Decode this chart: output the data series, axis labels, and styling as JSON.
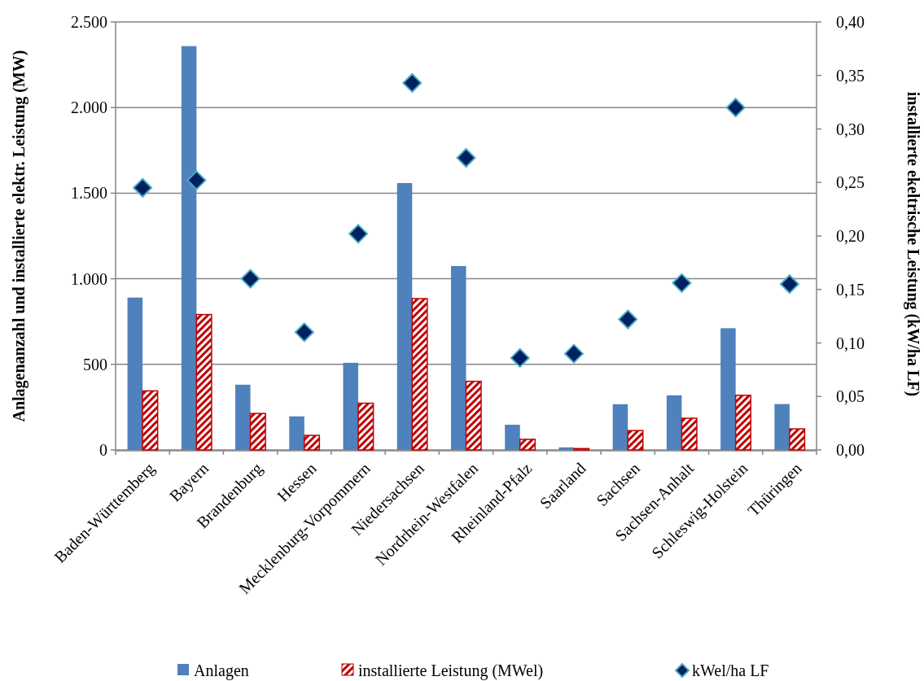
{
  "chart_data": {
    "type": "bar",
    "ylabel": "Anlagenanzahl und installierte elektr. Leistung (MW)",
    "y2label": "installierte ekeltrische Leistung (kW/ha LF)",
    "categories": [
      "Baden-Württemberg",
      "Bayern",
      "Brandenburg",
      "Hessen",
      "Mecklenburg-Vorpommern",
      "Niedersachsen",
      "Nordrhein-Westfalen",
      "Rheinland-Pfalz",
      "Saarland",
      "Sachsen",
      "Sachsen-Anhalt",
      "Schleswig-Holstein",
      "Thüringen"
    ],
    "series": [
      {
        "name": "Anlagen",
        "color": "#4f81bd",
        "values": [
          890,
          2359,
          381,
          196,
          509,
          1559,
          1074,
          147,
          15,
          267,
          319,
          711,
          268
        ]
      },
      {
        "name": "installierte Leistung (MWel)",
        "color": "#c00000",
        "values": [
          345,
          791,
          213,
          85,
          273,
          884,
          401,
          62,
          8,
          113,
          185,
          319,
          123
        ]
      },
      {
        "name": "kWel/ha LF",
        "type": "scatter",
        "axis": "y2",
        "color": "#002060",
        "marker": "diamond",
        "values": [
          0.245,
          0.252,
          0.16,
          0.11,
          0.202,
          0.343,
          0.273,
          0.086,
          0.09,
          0.122,
          0.156,
          0.32,
          0.155
        ]
      }
    ],
    "ylim": [
      0,
      2500
    ],
    "yticks": [
      0,
      500,
      {
        "value": 1000,
        "label": "1.000"
      },
      {
        "value": 1500,
        "label": "1.500"
      },
      {
        "value": 2000,
        "label": "2.000"
      },
      {
        "value": 2500,
        "label": "2.500"
      }
    ],
    "y2lim": [
      0,
      0.4
    ],
    "y2ticks": [
      {
        "value": 0,
        "label": "0,00"
      },
      {
        "value": 0.05,
        "label": "0,05"
      },
      {
        "value": 0.1,
        "label": "0,10"
      },
      {
        "value": 0.15,
        "label": "0,15"
      },
      {
        "value": 0.2,
        "label": "0,20"
      },
      {
        "value": 0.25,
        "label": "0,25"
      },
      {
        "value": 0.3,
        "label": "0,30"
      },
      {
        "value": 0.35,
        "label": "0,35"
      },
      {
        "value": 0.4,
        "label": "0,40"
      }
    ],
    "grid": "y",
    "legend": "bottom"
  }
}
